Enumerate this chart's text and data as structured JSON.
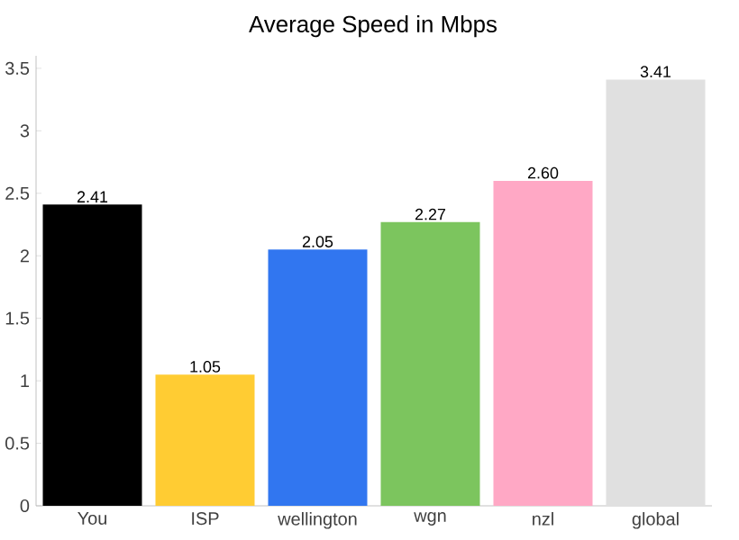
{
  "chart_data": {
    "type": "bar",
    "title": "Average Speed in Mbps",
    "categories": [
      "You",
      "ISP",
      "wellington",
      "wgn",
      "nzl",
      "global"
    ],
    "values": [
      2.41,
      1.05,
      2.05,
      2.27,
      2.6,
      3.41
    ],
    "colors": [
      "#000000",
      "#ffcc33",
      "#3176f0",
      "#7cc55e",
      "#ffa8c5",
      "#e0e0e0"
    ],
    "value_labels": [
      "2.41",
      "1.05",
      "2.05",
      "2.27",
      "2.60",
      "3.41"
    ],
    "ylim": [
      0,
      3.6
    ],
    "yticks": [
      0,
      0.5,
      1,
      1.5,
      2,
      2.5,
      3,
      3.5
    ]
  }
}
